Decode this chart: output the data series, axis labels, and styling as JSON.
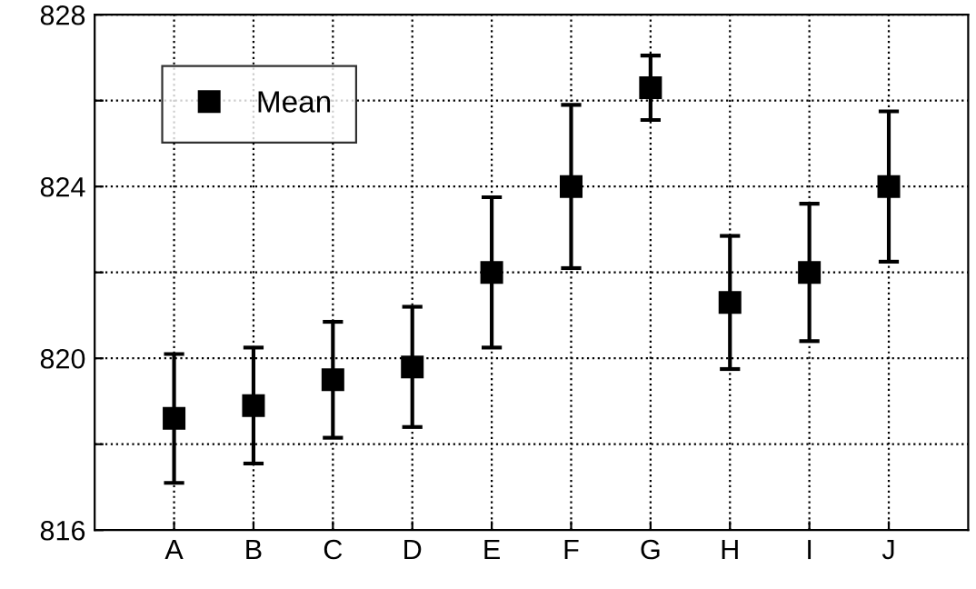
{
  "chart_data": {
    "type": "scatter",
    "categories": [
      "A",
      "B",
      "C",
      "D",
      "E",
      "F",
      "G",
      "H",
      "I",
      "J"
    ],
    "series": [
      {
        "name": "Mean",
        "color": "#000000",
        "values": [
          818.6,
          818.9,
          819.5,
          819.8,
          822.0,
          824.0,
          826.3,
          821.3,
          822.0,
          824.0
        ],
        "errors": [
          1.5,
          1.35,
          1.35,
          1.4,
          1.75,
          1.9,
          0.75,
          1.55,
          1.6,
          1.75
        ]
      }
    ],
    "ylim": [
      816,
      828
    ],
    "yticks": [
      816,
      {
        "value": 818,
        "label": null
      },
      820,
      {
        "value": 822,
        "label": null
      },
      824,
      {
        "value": 826,
        "label": null
      },
      828
    ],
    "grid": true,
    "legend": "top left",
    "marker": "square"
  }
}
